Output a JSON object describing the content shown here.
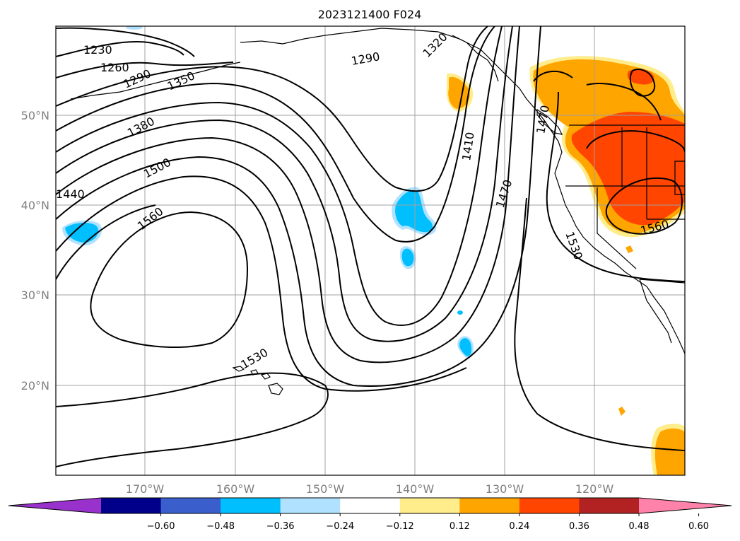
{
  "title": "2023121400 F024",
  "lat_labels": [
    "50°N",
    "40°N",
    "30°N",
    "20°N"
  ],
  "lon_labels": [
    "170°W",
    "160°W",
    "150°W",
    "140°W",
    "130°W",
    "120°W"
  ],
  "contour_labels": [
    "1230",
    "1260",
    "1290",
    "1350",
    "1380",
    "1440",
    "1500",
    "1560",
    "1290",
    "1320",
    "1410",
    "1470",
    "1470",
    "1530",
    "1530",
    "1560"
  ],
  "colorbar": {
    "ticks": [
      "−0.60",
      "−0.48",
      "−0.36",
      "−0.24",
      "−0.12",
      "0.12",
      "0.24",
      "0.36",
      "0.48",
      "0.60"
    ],
    "colors": [
      "#9932cc",
      "#00008b",
      "#3a5fcd",
      "#00bfff",
      "#b0e2ff",
      "#ffffff",
      "#ffec8b",
      "#ffa500",
      "#ff4500",
      "#b22222",
      "#ff82ab"
    ]
  }
}
